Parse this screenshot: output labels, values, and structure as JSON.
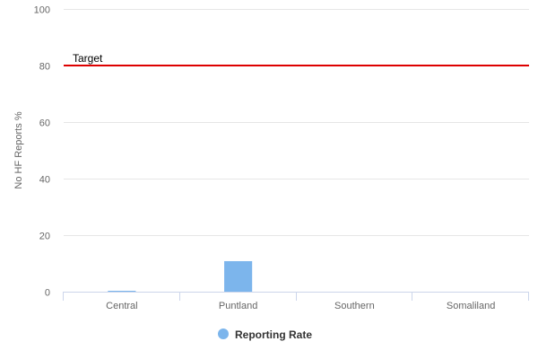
{
  "chart_data": {
    "type": "bar",
    "categories": [
      "Central",
      "Puntland",
      "Southern",
      "Somaliland"
    ],
    "series": [
      {
        "name": "Reporting Rate",
        "values": [
          0.3,
          10.8,
          0,
          0
        ],
        "color": "#7cb5ec"
      }
    ],
    "title": "",
    "xlabel": "",
    "ylabel": "No HF Reports %",
    "ylim": [
      0,
      100
    ],
    "yticks": [
      0,
      20,
      40,
      60,
      80,
      100
    ],
    "grid": true,
    "legend": "bottom-center",
    "plot_lines": [
      {
        "label": "Target",
        "value": 80,
        "color": "#dd0000"
      }
    ],
    "colors": {
      "grid": "#e6e6e6",
      "axis": "#ccd6eb",
      "text": "#666666"
    }
  }
}
